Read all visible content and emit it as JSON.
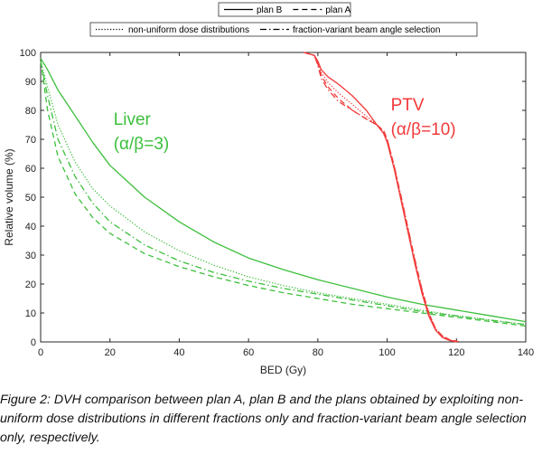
{
  "caption": "Figure 2: DVH comparison between plan A, plan B and the plans obtained by exploiting non-uniform dose distributions in different fractions only and fraction-variant beam angle selection only, respectively.",
  "chart_data": {
    "type": "line",
    "xlabel": "BED (Gy)",
    "ylabel": "Relative volume (%)",
    "xlim": [
      0,
      140
    ],
    "ylim": [
      0,
      100
    ],
    "xticks": [
      0,
      20,
      40,
      60,
      80,
      100,
      120,
      140
    ],
    "yticks": [
      0,
      10,
      20,
      30,
      40,
      50,
      60,
      70,
      80,
      90,
      100
    ],
    "grid": false,
    "legend": {
      "placement": "top-center",
      "row1": [
        {
          "label": "plan B",
          "style": "solid"
        },
        {
          "label": "plan A",
          "style": "dashed"
        }
      ],
      "row2": [
        {
          "label": "non-uniform dose distributions",
          "style": "dotted"
        },
        {
          "label": "fraction-variant beam angle selection",
          "style": "dashdot"
        }
      ]
    },
    "annotations": [
      {
        "lines": [
          "Liver",
          "(α/β=3)"
        ],
        "color": "#3cbf3c",
        "x": 20,
        "y": 75
      },
      {
        "lines": [
          "PTV",
          "(α/β=10)"
        ],
        "color": "#f23a3a",
        "x": 100,
        "y": 80
      }
    ],
    "colors": {
      "liver": "#3cbf3c",
      "ptv": "#f23a3a"
    },
    "series": [
      {
        "structure": "Liver",
        "plan": "plan B",
        "style": "solid",
        "color": "#3cbf3c",
        "x": [
          0,
          2,
          5,
          10,
          15,
          20,
          30,
          40,
          50,
          60,
          70,
          80,
          90,
          100,
          110,
          120,
          130,
          140
        ],
        "y": [
          98,
          94,
          87,
          78,
          69,
          61,
          50,
          41.5,
          34.5,
          29,
          25,
          21.5,
          18.5,
          15.5,
          13,
          11,
          9,
          7
        ]
      },
      {
        "structure": "Liver",
        "plan": "non-uniform dose distributions",
        "style": "dotted",
        "color": "#3cbf3c",
        "x": [
          0,
          2,
          5,
          10,
          15,
          20,
          30,
          40,
          50,
          60,
          70,
          80,
          90,
          100,
          110,
          120,
          130,
          140
        ],
        "y": [
          97,
          88,
          75,
          62,
          53,
          47,
          38,
          31.5,
          26.5,
          22.5,
          19.5,
          17,
          15,
          13,
          11,
          9,
          7.5,
          6
        ]
      },
      {
        "structure": "Liver",
        "plan": "fraction-variant beam angle selection",
        "style": "dashdot",
        "color": "#3cbf3c",
        "x": [
          0,
          2,
          5,
          10,
          15,
          20,
          30,
          40,
          50,
          60,
          70,
          80,
          90,
          100,
          110,
          120,
          130,
          140
        ],
        "y": [
          97,
          85,
          70,
          57,
          48,
          41.5,
          33.5,
          28,
          24,
          21,
          18.5,
          16.5,
          14.5,
          12.5,
          10.5,
          9,
          7.5,
          6
        ]
      },
      {
        "structure": "Liver",
        "plan": "plan A",
        "style": "dashed",
        "color": "#3cbf3c",
        "x": [
          0,
          2,
          5,
          10,
          15,
          20,
          30,
          40,
          50,
          60,
          70,
          80,
          90,
          100,
          110,
          120,
          130,
          140
        ],
        "y": [
          97,
          80,
          64,
          51,
          43,
          37.5,
          30.5,
          26,
          22.5,
          19.5,
          17,
          15,
          13,
          11.5,
          10,
          8.5,
          7,
          5.5
        ]
      },
      {
        "structure": "PTV",
        "plan": "plan B",
        "style": "solid",
        "color": "#f23a3a",
        "x": [
          76,
          79,
          80,
          81,
          83,
          86,
          90,
          94,
          97,
          99,
          100,
          102,
          104,
          106,
          108,
          110,
          112,
          114,
          116,
          118,
          120
        ],
        "y": [
          100,
          99,
          97,
          94,
          91.5,
          89,
          85,
          80,
          75,
          72,
          69,
          60,
          49,
          38,
          27,
          17,
          9,
          4,
          1.5,
          0.5,
          0
        ]
      },
      {
        "structure": "PTV",
        "plan": "plan A",
        "style": "dashed",
        "color": "#f23a3a",
        "x": [
          76,
          79,
          80,
          81,
          83,
          86,
          90,
          94,
          97,
          99,
          100,
          102,
          104,
          106,
          108,
          110,
          112,
          114,
          116,
          118,
          121
        ],
        "y": [
          100,
          99,
          96,
          92,
          88,
          84,
          80,
          77,
          75,
          73,
          70,
          61,
          50,
          39,
          28,
          18,
          10,
          4.5,
          2,
          0.8,
          0
        ]
      },
      {
        "structure": "PTV",
        "plan": "non-uniform dose distributions",
        "style": "dotted",
        "color": "#f23a3a",
        "x": [
          76,
          79,
          80,
          81,
          83,
          86,
          90,
          94,
          97,
          99,
          100,
          102,
          104,
          106,
          108,
          110,
          112,
          114,
          116,
          118,
          120
        ],
        "y": [
          100,
          99,
          96.5,
          93,
          89.5,
          86,
          82,
          78,
          75,
          72.5,
          69.5,
          60.5,
          49.5,
          38.5,
          27.5,
          17.5,
          9.5,
          4.2,
          1.8,
          0.6,
          0
        ]
      },
      {
        "structure": "PTV",
        "plan": "fraction-variant beam angle selection",
        "style": "dashdot",
        "color": "#f23a3a",
        "x": [
          76,
          79,
          80,
          81,
          83,
          86,
          90,
          94,
          97,
          99,
          100,
          102,
          104,
          106,
          108,
          110,
          112,
          114,
          116,
          118,
          120
        ],
        "y": [
          100,
          99,
          95.5,
          91,
          87,
          83,
          80,
          77,
          75,
          73,
          70,
          61,
          50.5,
          39.5,
          28.5,
          18.5,
          10,
          4.5,
          2,
          0.7,
          0
        ]
      }
    ]
  }
}
